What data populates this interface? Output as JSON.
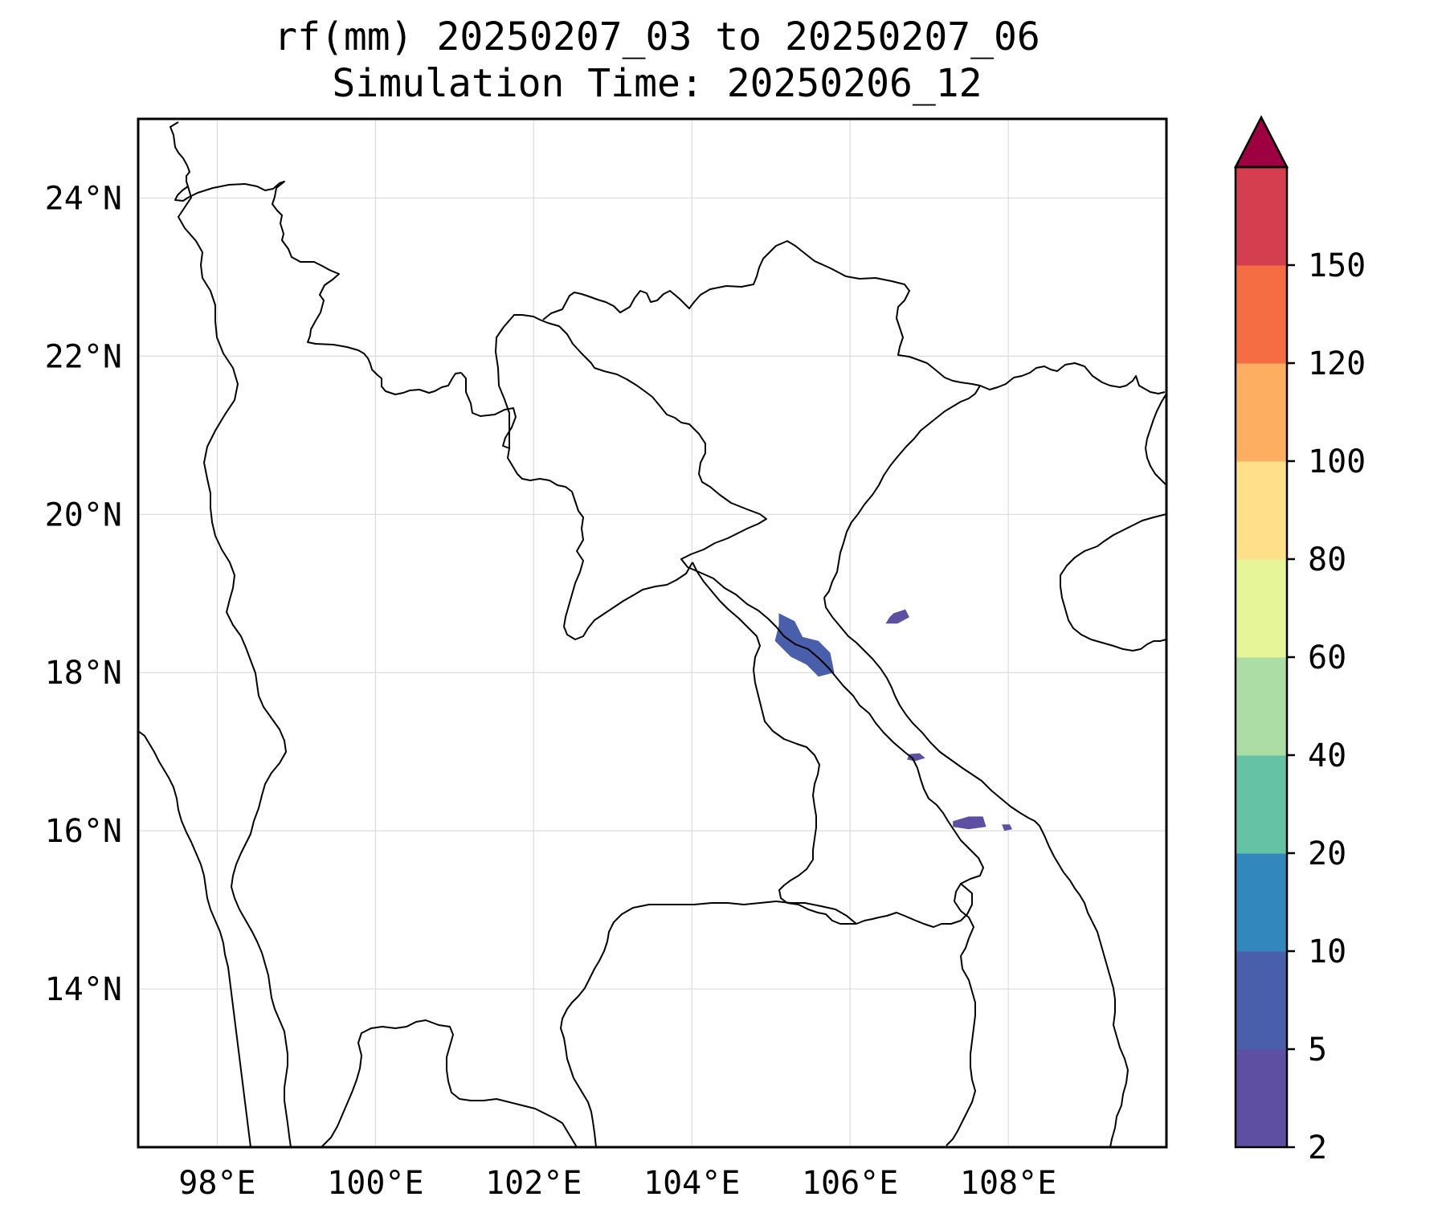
{
  "title": {
    "line1": "rf(mm) 20250207_03 to 20250207_06",
    "line2": "Simulation Time: 20250206_12"
  },
  "map_data": {
    "extent": {
      "lon_min": 97.0,
      "lon_max": 110.0,
      "lat_min": 12.0,
      "lat_max": 25.0
    },
    "lon_ticks": [
      {
        "value": 98,
        "label": "98°E"
      },
      {
        "value": 100,
        "label": "100°E"
      },
      {
        "value": 102,
        "label": "102°E"
      },
      {
        "value": 104,
        "label": "104°E"
      },
      {
        "value": 106,
        "label": "106°E"
      },
      {
        "value": 108,
        "label": "108°E"
      }
    ],
    "lat_ticks": [
      {
        "value": 14,
        "label": "14°N"
      },
      {
        "value": 16,
        "label": "16°N"
      },
      {
        "value": 18,
        "label": "18°N"
      },
      {
        "value": 20,
        "label": "20°N"
      },
      {
        "value": 22,
        "label": "22°N"
      },
      {
        "value": 24,
        "label": "24°N"
      }
    ],
    "gridlines": true,
    "rain_patches": [
      {
        "level": "5-10",
        "color": "#4a5fab",
        "points": [
          [
            105.1,
            18.75
          ],
          [
            105.3,
            18.65
          ],
          [
            105.4,
            18.45
          ],
          [
            105.6,
            18.4
          ],
          [
            105.75,
            18.25
          ],
          [
            105.8,
            18.0
          ],
          [
            105.6,
            17.95
          ],
          [
            105.45,
            18.1
          ],
          [
            105.25,
            18.2
          ],
          [
            105.05,
            18.4
          ],
          [
            105.1,
            18.6
          ]
        ]
      },
      {
        "level": "2-5",
        "color": "#5e4fa2",
        "points": [
          [
            106.55,
            18.75
          ],
          [
            106.7,
            18.8
          ],
          [
            106.75,
            18.7
          ],
          [
            106.6,
            18.62
          ],
          [
            106.45,
            18.62
          ],
          [
            106.5,
            18.7
          ]
        ]
      },
      {
        "level": "2-5",
        "color": "#5e4fa2",
        "points": [
          [
            106.75,
            16.97
          ],
          [
            106.88,
            16.98
          ],
          [
            106.95,
            16.92
          ],
          [
            106.82,
            16.88
          ],
          [
            106.72,
            16.9
          ]
        ]
      },
      {
        "level": "2-5",
        "color": "#5e4fa2",
        "points": [
          [
            107.3,
            16.12
          ],
          [
            107.5,
            16.18
          ],
          [
            107.68,
            16.18
          ],
          [
            107.72,
            16.05
          ],
          [
            107.5,
            16.02
          ],
          [
            107.3,
            16.05
          ]
        ]
      },
      {
        "level": "2-5",
        "color": "#5e4fa2",
        "points": [
          [
            107.92,
            16.08
          ],
          [
            108.02,
            16.08
          ],
          [
            108.05,
            16.02
          ],
          [
            107.95,
            16.0
          ]
        ]
      }
    ]
  },
  "colorbar": {
    "levels": [
      "2",
      "5",
      "10",
      "20",
      "40",
      "60",
      "80",
      "100",
      "120",
      "150"
    ],
    "colors": [
      "#5e4fa2",
      "#4a5fab",
      "#3288bd",
      "#66c2a5",
      "#abdda4",
      "#e6f598",
      "#fee08b",
      "#fdae61",
      "#f46d43",
      "#d53e4f"
    ],
    "extend_color": "#9e0142",
    "extend": "max"
  }
}
